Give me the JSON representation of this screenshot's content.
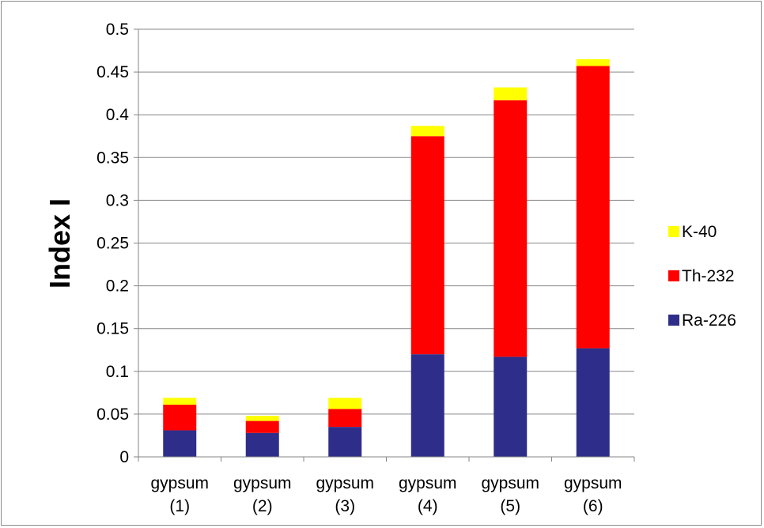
{
  "chart_data": {
    "type": "bar",
    "stacked": true,
    "categories": [
      [
        "gypsum",
        "(1)"
      ],
      [
        "gypsum",
        "(2)"
      ],
      [
        "gypsum",
        "(3)"
      ],
      [
        "gypsum",
        "(4)"
      ],
      [
        "gypsum",
        "(5)"
      ],
      [
        "gypsum",
        "(6)"
      ]
    ],
    "series": [
      {
        "name": "Ra-226",
        "color": "#2e2e8a",
        "values": [
          0.031,
          0.028,
          0.035,
          0.12,
          0.117,
          0.127
        ]
      },
      {
        "name": "Th-232",
        "color": "#ff0000",
        "values": [
          0.03,
          0.014,
          0.021,
          0.255,
          0.3,
          0.33
        ]
      },
      {
        "name": "K-40",
        "color": "#ffff00",
        "values": [
          0.008,
          0.006,
          0.013,
          0.012,
          0.015,
          0.008
        ]
      }
    ],
    "ylabel": "Index I",
    "xlabel": "",
    "title": "",
    "ylim": [
      0,
      0.5
    ],
    "yticks": [
      "0",
      "0.05",
      "0.1",
      "0.15",
      "0.2",
      "0.25",
      "0.3",
      "0.35",
      "0.4",
      "0.45",
      "0.5"
    ],
    "grid": true,
    "legend": {
      "position": "right",
      "order": [
        "K-40",
        "Th-232",
        "Ra-226"
      ]
    },
    "colors": {
      "grid": "#868686",
      "axis": "#868686"
    }
  }
}
